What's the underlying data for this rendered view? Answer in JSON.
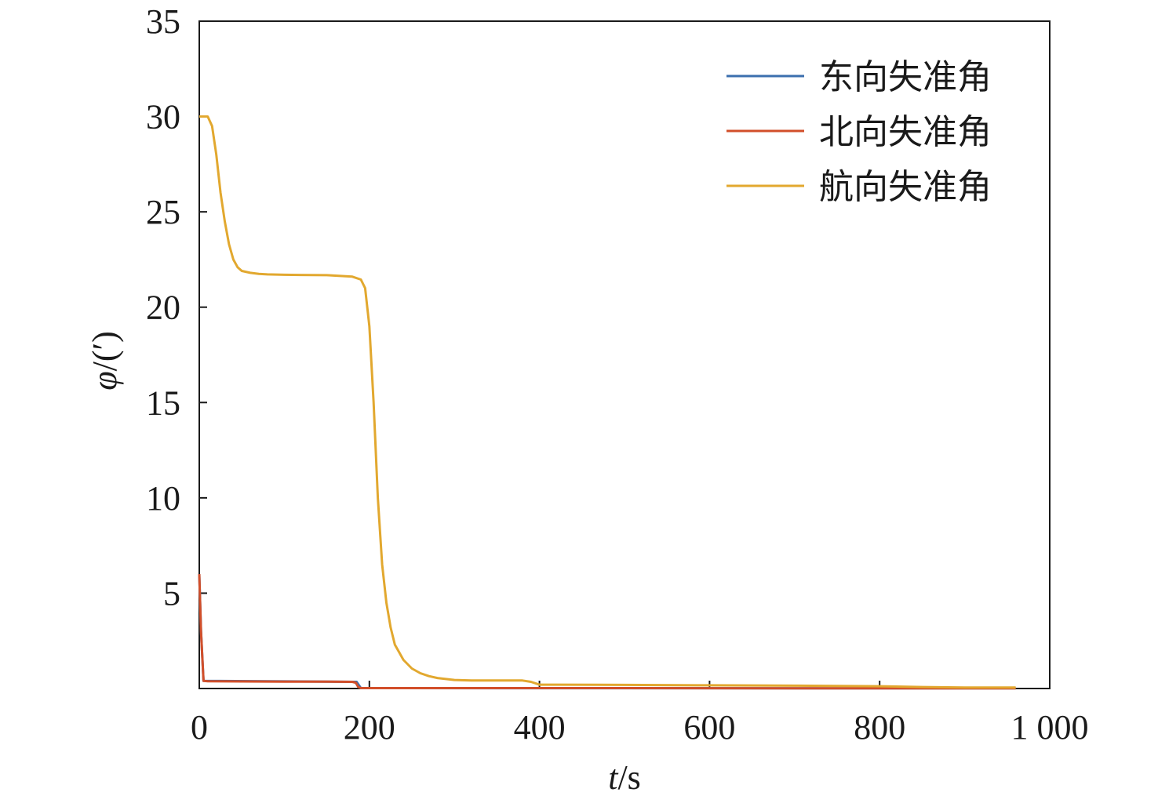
{
  "chart_data": {
    "type": "line",
    "xlabel_var": "t",
    "xlabel_unit": "/s",
    "ylabel_var": "φ",
    "ylabel_unit": "/(′)",
    "xlim": [
      0,
      1000
    ],
    "ylim": [
      0,
      35
    ],
    "xticks": [
      0,
      200,
      400,
      600,
      800,
      1000
    ],
    "xtick_labels": [
      "0",
      "200",
      "400",
      "600",
      "800",
      "1 000"
    ],
    "yticks": [
      5,
      10,
      15,
      20,
      25,
      30,
      35
    ],
    "ytick_labels": [
      "5",
      "10",
      "15",
      "20",
      "25",
      "30",
      "35"
    ],
    "grid": false,
    "legend_position": "top-right",
    "series": [
      {
        "name": "东向失准角",
        "color": "#3b6fae",
        "x": [
          0,
          2,
          5,
          185,
          190,
          960
        ],
        "y": [
          6,
          3,
          0.4,
          0.35,
          0.02,
          0.01
        ]
      },
      {
        "name": "北向失准角",
        "color": "#d24f2a",
        "x": [
          0,
          2,
          5,
          10,
          50,
          100,
          150,
          180,
          184,
          187,
          190,
          300,
          500,
          700,
          960
        ],
        "y": [
          6,
          3,
          0.4,
          0.38,
          0.37,
          0.36,
          0.36,
          0.35,
          0.3,
          0.08,
          0.02,
          0.02,
          0.02,
          0.01,
          0.01
        ]
      },
      {
        "name": "航向失准角",
        "color": "#e2a82f",
        "x": [
          0,
          10,
          15,
          20,
          25,
          30,
          35,
          40,
          45,
          50,
          60,
          70,
          80,
          100,
          150,
          180,
          190,
          195,
          200,
          205,
          210,
          215,
          220,
          225,
          230,
          240,
          250,
          260,
          270,
          280,
          300,
          320,
          350,
          380,
          390,
          400,
          420,
          500,
          600,
          700,
          800,
          850,
          900,
          960
        ],
        "y": [
          30,
          30,
          29.5,
          28,
          26,
          24.5,
          23.3,
          22.5,
          22.1,
          21.9,
          21.8,
          21.75,
          21.72,
          21.7,
          21.68,
          21.6,
          21.45,
          21,
          19,
          15,
          10,
          6.5,
          4.5,
          3.2,
          2.3,
          1.5,
          1.05,
          0.8,
          0.65,
          0.55,
          0.45,
          0.42,
          0.42,
          0.42,
          0.35,
          0.2,
          0.2,
          0.19,
          0.17,
          0.15,
          0.12,
          0.08,
          0.05,
          0.05
        ]
      }
    ]
  }
}
